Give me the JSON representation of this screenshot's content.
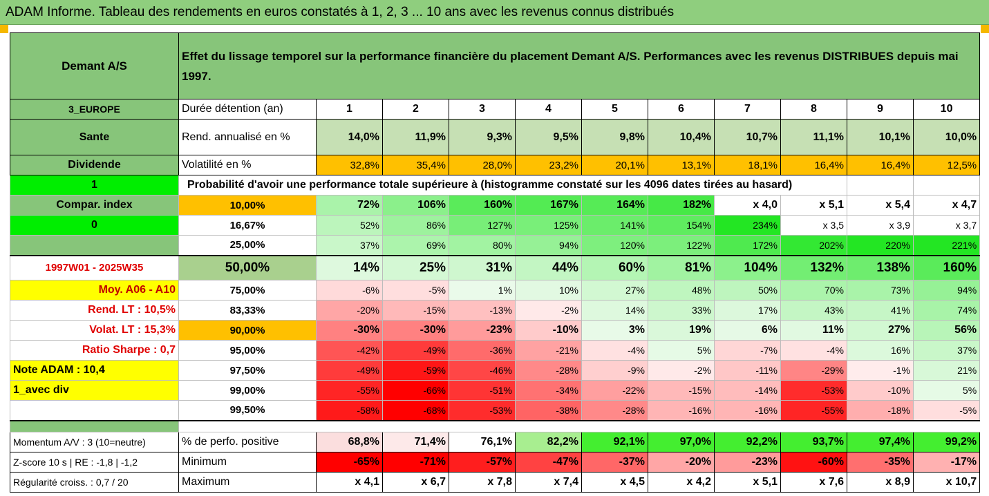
{
  "title": "ADAM Informe. Tableau des rendements en euros constatés à 1, 2, 3 ... 10 ans avec les revenus connus distribués",
  "header": {
    "fund": "Demant A/S",
    "description": "Effet du lissage temporel sur la performance financière du placement Demant A/S. Performances avec les revenus DISTRIBUES depuis mai 1997."
  },
  "left": {
    "region": "3_EUROPE",
    "sector": "Sante",
    "type": "Dividende",
    "flag1": "1",
    "compar": "Compar. index",
    "flag2": "0",
    "period": "1997W01 - 2025W35",
    "moy": "Moy. A06 - A10",
    "rend_lt": "Rend. LT :   10,5%",
    "volat_lt": "Volat. LT :   15,3%",
    "sharpe": "Ratio Sharpe :    0,7",
    "note": "Note ADAM : 10,4",
    "avec_div": "1_avec div",
    "momentum": "Momentum A/V : 3 (10=neutre)",
    "zscore": "Z-score 10 s  | RE : -1,8  | -1,2",
    "regularite": "Régularité croiss. : 0,7 / 20"
  },
  "duree_label": "Durée détention (an)",
  "years": [
    "1",
    "2",
    "3",
    "4",
    "5",
    "6",
    "7",
    "8",
    "9",
    "10"
  ],
  "rend_label": "Rend. annualisé en %",
  "rend": [
    "14,0%",
    "11,9%",
    "9,3%",
    "9,5%",
    "9,8%",
    "10,4%",
    "10,7%",
    "11,1%",
    "10,1%",
    "10,0%"
  ],
  "vol_label": "Volatilité en %",
  "vol": [
    "32,8%",
    "35,4%",
    "28,0%",
    "23,2%",
    "20,1%",
    "13,1%",
    "18,1%",
    "16,4%",
    "16,4%",
    "12,5%"
  ],
  "proba_label": "Probabilité d'avoir une performance totale supérieure à (histogramme constaté sur les 4096 dates tirées au hasard)",
  "rows": [
    {
      "p": "10,00%",
      "v": [
        "72%",
        "106%",
        "160%",
        "167%",
        "164%",
        "182%",
        "x 4,0",
        "x 5,1",
        "x 5,4",
        "x 4,7"
      ]
    },
    {
      "p": "16,67%",
      "v": [
        "52%",
        "86%",
        "127%",
        "125%",
        "141%",
        "154%",
        "234%",
        "x 3,5",
        "x 3,9",
        "x 3,7"
      ]
    },
    {
      "p": "25,00%",
      "v": [
        "37%",
        "69%",
        "80%",
        "94%",
        "120%",
        "122%",
        "172%",
        "202%",
        "220%",
        "221%"
      ]
    },
    {
      "p": "50,00%",
      "v": [
        "14%",
        "25%",
        "31%",
        "44%",
        "60%",
        "81%",
        "104%",
        "132%",
        "138%",
        "160%"
      ]
    },
    {
      "p": "75,00%",
      "v": [
        "-6%",
        "-5%",
        "1%",
        "10%",
        "27%",
        "48%",
        "50%",
        "70%",
        "73%",
        "94%"
      ]
    },
    {
      "p": "83,33%",
      "v": [
        "-20%",
        "-15%",
        "-13%",
        "-2%",
        "14%",
        "33%",
        "17%",
        "43%",
        "41%",
        "74%"
      ]
    },
    {
      "p": "90,00%",
      "v": [
        "-30%",
        "-30%",
        "-23%",
        "-10%",
        "3%",
        "19%",
        "6%",
        "11%",
        "27%",
        "56%"
      ]
    },
    {
      "p": "95,00%",
      "v": [
        "-42%",
        "-49%",
        "-36%",
        "-21%",
        "-4%",
        "5%",
        "-7%",
        "-4%",
        "16%",
        "37%"
      ]
    },
    {
      "p": "97,50%",
      "v": [
        "-49%",
        "-59%",
        "-46%",
        "-28%",
        "-9%",
        "-2%",
        "-11%",
        "-29%",
        "-1%",
        "21%"
      ]
    },
    {
      "p": "99,00%",
      "v": [
        "-55%",
        "-66%",
        "-51%",
        "-34%",
        "-22%",
        "-15%",
        "-14%",
        "-53%",
        "-10%",
        "5%"
      ]
    },
    {
      "p": "99,50%",
      "v": [
        "-58%",
        "-68%",
        "-53%",
        "-38%",
        "-28%",
        "-16%",
        "-16%",
        "-55%",
        "-18%",
        "-5%"
      ]
    }
  ],
  "pos_label": "% de perfo. positive",
  "pos": [
    "68,8%",
    "71,4%",
    "76,1%",
    "82,2%",
    "92,1%",
    "97,0%",
    "92,2%",
    "93,7%",
    "97,4%",
    "99,2%"
  ],
  "min_label": "Minimum",
  "min": [
    "-65%",
    "-71%",
    "-57%",
    "-47%",
    "-37%",
    "-20%",
    "-23%",
    "-60%",
    "-35%",
    "-17%"
  ],
  "max_label": "Maximum",
  "max": [
    "x 4,1",
    "x 6,7",
    "x 7,8",
    "x 7,4",
    "x 4,5",
    "x 4,2",
    "x 5,1",
    "x 7,6",
    "x 8,9",
    "x 10,7"
  ],
  "colors": {
    "header_green": "#87c57a",
    "yellow": "#ffff00",
    "orange": "#ffc000",
    "bright_green": "#00ee00",
    "red": "#e00000"
  }
}
